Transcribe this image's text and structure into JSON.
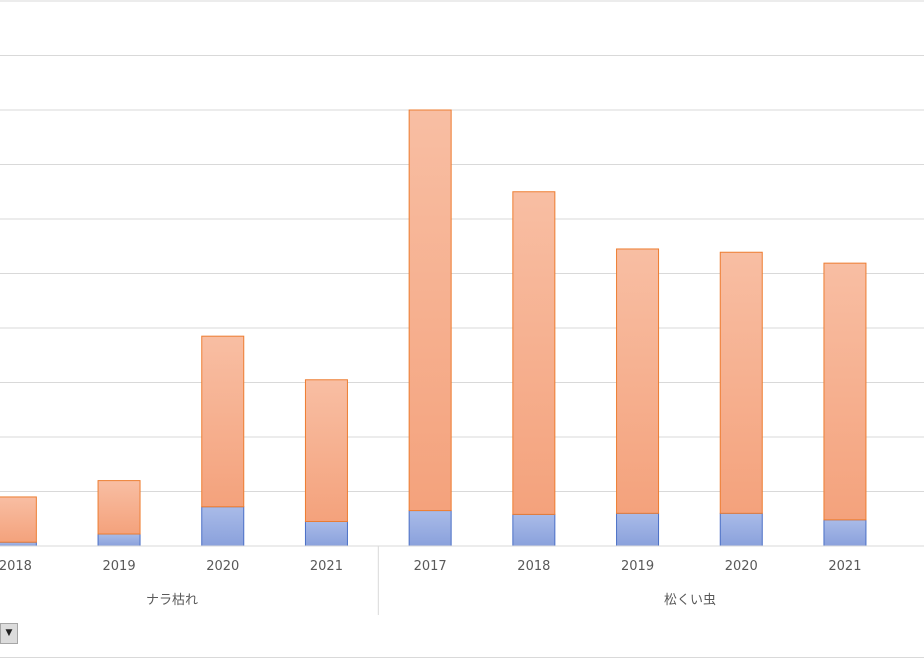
{
  "chart_data": {
    "type": "bar",
    "stacked": true,
    "groups": [
      {
        "name": "ナラ枯れ",
        "categories": [
          "2018",
          "2019",
          "2020",
          "2021"
        ]
      },
      {
        "name": "松くい虫",
        "categories": [
          "2017",
          "2018",
          "2019",
          "2020",
          "2021"
        ]
      }
    ],
    "categories": [
      "2018",
      "2019",
      "2020",
      "2021",
      "2017",
      "2018",
      "2019",
      "2020",
      "2021"
    ],
    "series": [
      {
        "color": "#8fa6de",
        "values": [
          0.07,
          0.22,
          0.72,
          0.45,
          0.65,
          0.58,
          0.6,
          0.6,
          0.48
        ]
      },
      {
        "color": "#f6a77f",
        "values": [
          0.83,
          0.98,
          3.13,
          2.6,
          7.35,
          5.92,
          4.85,
          4.79,
          4.71
        ]
      }
    ],
    "ylim": [
      0,
      10
    ],
    "grid": true,
    "gridlines": 10,
    "legend": "none"
  },
  "icons": {
    "dropdown": "chevron-down-icon"
  }
}
